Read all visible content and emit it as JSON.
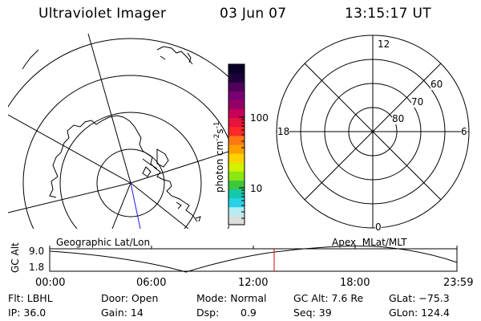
{
  "header": {
    "instrument": "Ultraviolet Imager",
    "date": "03 Jun 07",
    "time": "13:15:17 UT"
  },
  "colorbar": {
    "label_main": "photon cm",
    "label_exp1": "-2",
    "label_mid": "s",
    "label_exp2": "-1",
    "ticks": [
      "100",
      "10"
    ],
    "colors": [
      "#dcdcdc",
      "#b4ecf0",
      "#28d2e6",
      "#14c8aa",
      "#3cc83c",
      "#8ce614",
      "#d2f000",
      "#ffd200",
      "#ffa000",
      "#ff7814",
      "#ff2828",
      "#e6143c",
      "#c8005a",
      "#960064",
      "#780073",
      "#50005a",
      "#1e003c",
      "#0a0028"
    ]
  },
  "left_panel": {
    "title": "Geographic Lat/Lon"
  },
  "right_panel": {
    "title": "Apex  MLat/MLT",
    "mlt_labels": [
      "12",
      "18",
      "6",
      "0"
    ],
    "lat_labels": [
      "60",
      "70",
      "80"
    ]
  },
  "timeline": {
    "ylabel": "GC Alt",
    "yticks": [
      "9.0",
      "1.8"
    ],
    "xticks": [
      "00:00",
      "06:00",
      "12:00",
      "18:00",
      "23:59"
    ],
    "marker_color": "#dd0000"
  },
  "status": {
    "flt": "Flt: LBHL",
    "ip": "IP: 36.0",
    "door": "Door: Open",
    "gain": "Gain: 14",
    "mode": "Mode: Normal",
    "dsp_label": "Dsp:",
    "dsp_value": "0.9",
    "gc_alt": "GC Alt: 7.6 Re",
    "seq": "Seq: 39",
    "glat": "GLat: −75.3",
    "glon": "GLon: 124.4"
  }
}
